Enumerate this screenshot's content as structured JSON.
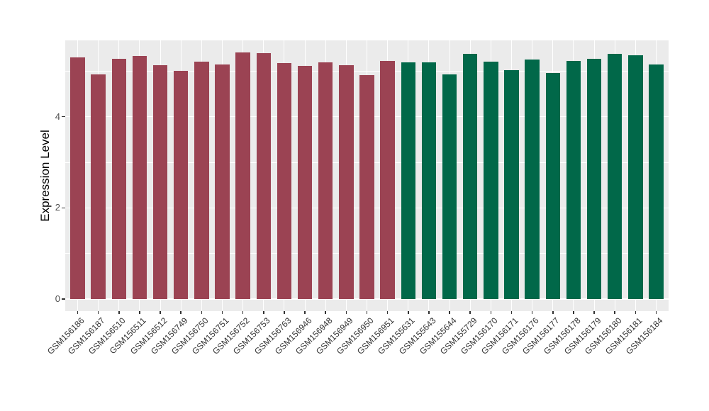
{
  "chart_data": {
    "type": "bar",
    "title": "",
    "xlabel": "",
    "ylabel": "Expression Level",
    "ylim": [
      0,
      5.67
    ],
    "yticks_major": [
      0,
      2,
      4
    ],
    "yticks_minor": [
      1,
      3,
      5
    ],
    "grid": "on",
    "legend": "none",
    "panel_bg": "#EBEBEB",
    "grid_color": "#FFFFFF",
    "group_colors": {
      "1": "#9B4353",
      "2": "#016849"
    },
    "categories": [
      "GSM156186",
      "GSM156187",
      "GSM156510",
      "GSM156511",
      "GSM156512",
      "GSM156749",
      "GSM156750",
      "GSM156751",
      "GSM156752",
      "GSM156753",
      "GSM156763",
      "GSM156946",
      "GSM156948",
      "GSM156949",
      "GSM156950",
      "GSM156951",
      "GSM155631",
      "GSM155643",
      "GSM155644",
      "GSM155729",
      "GSM156170",
      "GSM156171",
      "GSM156176",
      "GSM156177",
      "GSM156178",
      "GSM156179",
      "GSM156180",
      "GSM156181",
      "GSM156184"
    ],
    "values": [
      5.3,
      4.93,
      5.27,
      5.33,
      5.13,
      5.0,
      5.2,
      5.14,
      5.41,
      5.39,
      5.17,
      5.12,
      5.19,
      5.13,
      4.91,
      5.23,
      5.19,
      5.19,
      4.92,
      5.37,
      5.2,
      5.02,
      5.26,
      4.96,
      5.22,
      5.27,
      5.38,
      5.35,
      5.14
    ],
    "groups": [
      1,
      1,
      1,
      1,
      1,
      1,
      1,
      1,
      1,
      1,
      1,
      1,
      1,
      1,
      1,
      1,
      2,
      2,
      2,
      2,
      2,
      2,
      2,
      2,
      2,
      2,
      2,
      2,
      2
    ]
  }
}
